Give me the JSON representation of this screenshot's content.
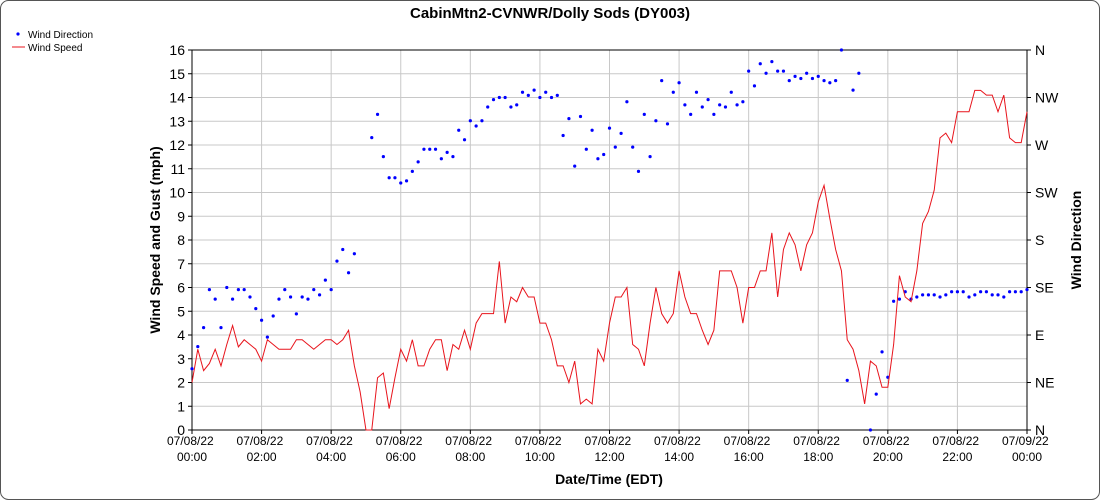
{
  "chart_data": {
    "type": "line",
    "title": "CabinMtn2-CVNWR/Dolly Sods (DY003)",
    "x_label": "Date/Time (EDT)",
    "y_label": "Wind Speed and Gust (mph)",
    "y2_label": "Wind Direction",
    "legend": "top-left",
    "grid": true,
    "x": [
      0,
      10,
      20,
      30,
      40,
      50,
      60,
      70,
      80,
      90,
      100,
      110,
      120,
      130,
      140,
      150,
      160,
      170,
      180,
      190,
      200,
      210,
      220,
      230,
      240,
      250,
      260,
      270,
      280,
      290,
      300,
      310,
      320,
      330,
      340,
      350,
      360,
      370,
      380,
      390,
      400,
      410,
      420,
      430,
      440,
      450,
      460,
      470,
      480,
      490,
      500,
      510,
      520,
      530,
      540,
      550,
      560,
      570,
      580,
      590,
      600,
      610,
      620,
      630,
      640,
      650,
      660,
      670,
      680,
      690,
      700,
      710,
      720,
      730,
      740,
      750,
      760,
      770,
      780,
      790,
      800,
      810,
      820,
      830,
      840,
      850,
      860,
      870,
      880,
      890,
      900,
      910,
      920,
      930,
      940,
      950,
      960,
      970,
      980,
      990,
      1000,
      1010,
      1020,
      1030,
      1040,
      1050,
      1060,
      1070,
      1080,
      1090,
      1100,
      1110,
      1120,
      1130,
      1140,
      1150,
      1160,
      1170,
      1180,
      1190,
      1200,
      1210,
      1220,
      1230,
      1240,
      1250,
      1260,
      1270,
      1280,
      1290,
      1300,
      1310,
      1320,
      1330,
      1340,
      1350,
      1360,
      1370,
      1380,
      1390,
      1400,
      1410,
      1420,
      1430,
      1440
    ],
    "xlim": [
      0,
      1440
    ],
    "xticks": [
      {
        "value": 0,
        "label": "07/08/22 00:00"
      },
      {
        "value": 120,
        "label": "07/08/22 02:00"
      },
      {
        "value": 240,
        "label": "07/08/22 04:00"
      },
      {
        "value": 360,
        "label": "07/08/22 06:00"
      },
      {
        "value": 480,
        "label": "07/08/22 08:00"
      },
      {
        "value": 600,
        "label": "07/08/22 10:00"
      },
      {
        "value": 720,
        "label": "07/08/22 12:00"
      },
      {
        "value": 840,
        "label": "07/08/22 14:00"
      },
      {
        "value": 960,
        "label": "07/08/22 16:00"
      },
      {
        "value": 1080,
        "label": "07/08/22 18:00"
      },
      {
        "value": 1200,
        "label": "07/08/22 20:00"
      },
      {
        "value": 1320,
        "label": "07/08/22 22:00"
      },
      {
        "value": 1440,
        "label": "07/09/22 00:00"
      }
    ],
    "ylim": [
      0,
      16
    ],
    "yticks": [
      0,
      1,
      2,
      3,
      4,
      5,
      6,
      7,
      8,
      9,
      10,
      11,
      12,
      13,
      14,
      15,
      16
    ],
    "y2lim": [
      0,
      360
    ],
    "y2ticks": [
      {
        "value": 0,
        "label": "N"
      },
      {
        "value": 45,
        "label": "NE"
      },
      {
        "value": 90,
        "label": "E"
      },
      {
        "value": 135,
        "label": "SE"
      },
      {
        "value": 180,
        "label": "S"
      },
      {
        "value": 225,
        "label": "SW"
      },
      {
        "value": 270,
        "label": "W"
      },
      {
        "value": 315,
        "label": "NW"
      },
      {
        "value": 360,
        "label": "N"
      }
    ],
    "series": [
      {
        "name": "Wind Direction",
        "color": "#0000ff",
        "style": "dots",
        "axis": "y2",
        "values": [
          58,
          79,
          97,
          133,
          124,
          97,
          135,
          124,
          133,
          133,
          126,
          115,
          104,
          88,
          108,
          124,
          133,
          126,
          110,
          126,
          124,
          133,
          128,
          142,
          133,
          160,
          171,
          149,
          167,
          null,
          null,
          277,
          299,
          259,
          239,
          239,
          234,
          236,
          245,
          254,
          266,
          266,
          266,
          257,
          263,
          259,
          284,
          275,
          293,
          288,
          293,
          306,
          313,
          315,
          315,
          306,
          308,
          320,
          317,
          322,
          315,
          320,
          315,
          317,
          279,
          295,
          250,
          297,
          266,
          284,
          257,
          261,
          286,
          268,
          281,
          311,
          268,
          245,
          299,
          259,
          293,
          331,
          290,
          320,
          329,
          308,
          299,
          320,
          306,
          313,
          299,
          308,
          306,
          320,
          308,
          311,
          340,
          326,
          347,
          338,
          349,
          340,
          340,
          331,
          335,
          333,
          338,
          333,
          335,
          331,
          329,
          331,
          360,
          47,
          322,
          338,
          null,
          0,
          34,
          74,
          50,
          122,
          124,
          131,
          124,
          126,
          128,
          128,
          128,
          126,
          128,
          131,
          131,
          131,
          126,
          128,
          131,
          131,
          128,
          128,
          126,
          131,
          131,
          131,
          133
        ]
      },
      {
        "name": "Wind Speed",
        "color": "#e8141c",
        "style": "line",
        "values": [
          2.0,
          3.4,
          2.5,
          2.8,
          3.4,
          2.7,
          3.6,
          4.4,
          3.5,
          3.8,
          3.6,
          3.4,
          2.9,
          3.8,
          3.6,
          3.4,
          3.4,
          3.4,
          3.8,
          3.8,
          3.6,
          3.4,
          3.6,
          3.8,
          3.8,
          3.6,
          3.8,
          4.2,
          2.7,
          1.6,
          0,
          0,
          2.2,
          2.4,
          0.9,
          2.2,
          3.4,
          2.9,
          3.8,
          2.7,
          2.7,
          3.4,
          3.8,
          3.8,
          2.5,
          3.6,
          3.4,
          4.2,
          3.4,
          4.5,
          4.9,
          4.9,
          4.9,
          7.1,
          4.5,
          5.6,
          5.4,
          6.0,
          5.6,
          5.6,
          4.5,
          4.5,
          3.8,
          2.7,
          2.7,
          2.0,
          2.9,
          1.1,
          1.3,
          1.1,
          3.4,
          2.9,
          4.5,
          5.6,
          5.6,
          6.0,
          3.6,
          3.4,
          2.7,
          4.5,
          6.0,
          4.9,
          4.5,
          4.9,
          6.7,
          5.6,
          4.9,
          4.9,
          4.2,
          3.6,
          4.2,
          6.7,
          6.7,
          6.7,
          6.0,
          4.5,
          6.0,
          6.0,
          6.7,
          6.7,
          8.3,
          5.6,
          7.6,
          8.3,
          7.8,
          6.7,
          7.8,
          8.3,
          9.6,
          10.3,
          8.9,
          7.6,
          6.7,
          3.8,
          3.4,
          2.5,
          1.1,
          2.9,
          2.7,
          1.8,
          1.8,
          3.6,
          6.5,
          5.6,
          5.4,
          6.7,
          8.7,
          9.2,
          10.1,
          12.3,
          12.5,
          12.1,
          13.4,
          13.4,
          13.4,
          14.3,
          14.3,
          14.1,
          14.1,
          13.4,
          14.1,
          12.3,
          12.1,
          12.1,
          13.4
        ]
      }
    ]
  }
}
